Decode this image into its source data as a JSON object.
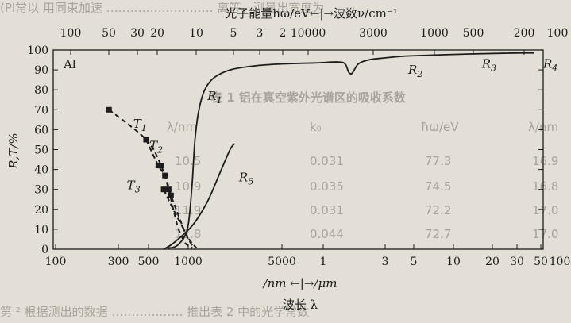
{
  "background_fragments": {
    "top_line": "(Pl常以 用同束加速 ……………………… 离等，测量出宽度为",
    "table_title": "表 1 铝在真空紫外光谱区的吸收系数",
    "table_header": [
      "λ/nm",
      "k₀",
      "ħω/eV",
      "λ/nm"
    ],
    "table_rows": [
      [
        "10.5",
        "0.031",
        "77.3",
        "16.9"
      ],
      [
        "10.9",
        "0.035",
        "74.5",
        "16.8"
      ],
      [
        "11.9",
        "0.031",
        "72.2",
        "17.0"
      ],
      [
        "12.8",
        "0.044",
        "72.7",
        "17.0"
      ]
    ],
    "bottom_line": "第 ² 根据测出的数据 ……………… 推出表 2 中的光学常数"
  },
  "top_axis": {
    "label": "光子能量ħω/eV←|→波数ν/cm⁻¹",
    "ticks": [
      "100",
      "50",
      "30",
      "20",
      "10",
      "5",
      "3",
      "2",
      "10000",
      "3000",
      "1000",
      "500",
      "200",
      "100"
    ]
  },
  "bottom_axis": {
    "label": "/nm ←|→/μm",
    "ticks": [
      "100",
      "300",
      "500",
      "1000",
      "5000",
      "1",
      "3",
      "5",
      "10",
      "20",
      "30",
      "50",
      "100"
    ]
  },
  "xlabel": "波长 λ",
  "colors": {
    "background": "#e4dfd6",
    "ink": "#1c1c1c",
    "faint": "#a8a39b"
  },
  "chart_data": {
    "type": "line",
    "title": "Al",
    "ylabel": "R,T/%",
    "ylim": [
      0,
      100
    ],
    "yticks": [
      0,
      10,
      20,
      30,
      40,
      50,
      60,
      70,
      80,
      90,
      100
    ],
    "xscale": "log",
    "xunit": "nm",
    "xlim": [
      100,
      150000
    ],
    "grid": false,
    "series": [
      {
        "name": "R1",
        "style": "solid",
        "points": [
          [
            550,
            0.5
          ],
          [
            640,
            2
          ],
          [
            740,
            10
          ],
          [
            790,
            30
          ],
          [
            830,
            55
          ],
          [
            880,
            70
          ],
          [
            960,
            80
          ],
          [
            1100,
            86
          ],
          [
            1400,
            90
          ],
          [
            2000,
            92
          ],
          [
            3000,
            93
          ],
          [
            5000,
            93.5
          ],
          [
            7000,
            94
          ],
          [
            7800,
            93
          ],
          [
            8200,
            89
          ],
          [
            8500,
            88
          ],
          [
            8800,
            89
          ],
          [
            9500,
            93
          ],
          [
            11000,
            95
          ],
          [
            14000,
            96
          ],
          [
            20000,
            97
          ],
          [
            50000,
            98
          ],
          [
            100000,
            98.5
          ],
          [
            130000,
            98.5
          ]
        ]
      },
      {
        "name": "R5",
        "style": "solid",
        "points": [
          [
            520,
            0
          ],
          [
            600,
            3
          ],
          [
            800,
            12
          ],
          [
            1000,
            24
          ],
          [
            1200,
            38
          ],
          [
            1400,
            50
          ],
          [
            1500,
            53
          ]
        ]
      },
      {
        "name": "T1",
        "style": "dashed",
        "markers": true,
        "points": [
          [
            230,
            70
          ],
          [
            400,
            55
          ],
          [
            500,
            42
          ],
          [
            560,
            30
          ],
          [
            600,
            20
          ],
          [
            650,
            10
          ],
          [
            720,
            3
          ],
          [
            800,
            0.5
          ]
        ]
      },
      {
        "name": "T2",
        "style": "dashed",
        "markers": true,
        "points": [
          [
            400,
            55
          ],
          [
            480,
            42
          ],
          [
            530,
            37
          ],
          [
            580,
            27
          ],
          [
            640,
            18
          ],
          [
            720,
            8
          ],
          [
            780,
            3
          ],
          [
            830,
            0.5
          ]
        ]
      },
      {
        "name": "T3",
        "style": "dashed",
        "markers": true,
        "points": [
          [
            520,
            30
          ],
          [
            600,
            20
          ],
          [
            680,
            12
          ],
          [
            760,
            5
          ],
          [
            850,
            0.5
          ]
        ]
      }
    ],
    "curve_labels": [
      {
        "text": "R1",
        "x": 1000,
        "y": 75
      },
      {
        "text": "R2",
        "x": 20000,
        "y": 88
      },
      {
        "text": "R3",
        "x": 60000,
        "y": 91
      },
      {
        "text": "R4",
        "x": 150000,
        "y": 91
      },
      {
        "text": "R5",
        "x": 1600,
        "y": 34
      },
      {
        "text": "T1",
        "x": 330,
        "y": 61
      },
      {
        "text": "T2",
        "x": 420,
        "y": 50
      },
      {
        "text": "T3",
        "x": 300,
        "y": 30
      }
    ]
  }
}
